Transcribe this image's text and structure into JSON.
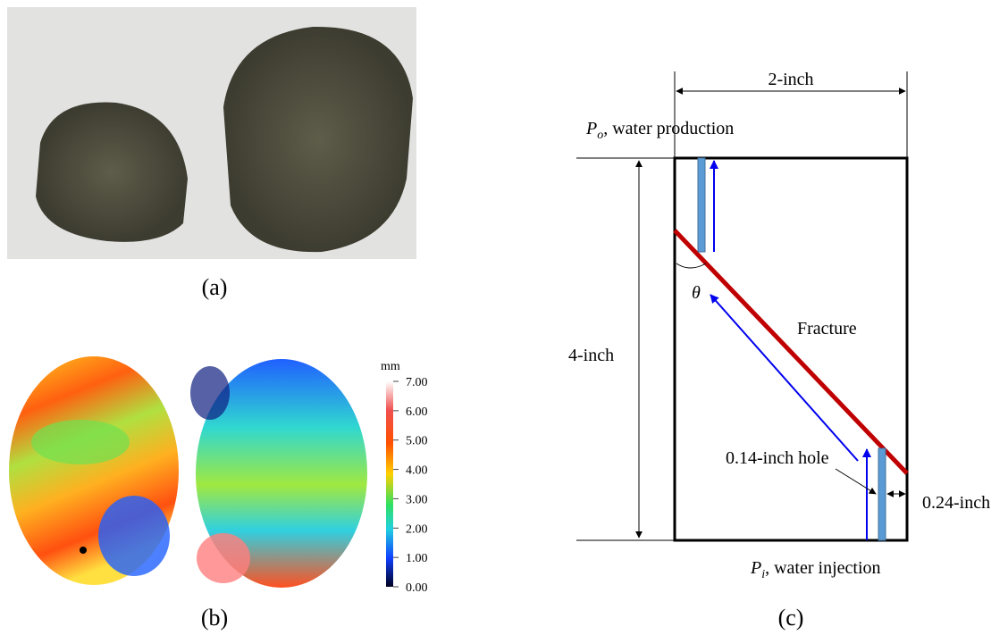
{
  "panels": {
    "a": {
      "label": "(a)"
    },
    "b": {
      "label": "(b)",
      "colorbar": {
        "unit": "mm",
        "ticks": [
          "7.00",
          "6.00",
          "5.00",
          "4.00",
          "3.00",
          "2.00",
          "1.00",
          "0.00"
        ]
      }
    },
    "c": {
      "label": "(c)",
      "width": "2-inch",
      "height": "4-inch",
      "outlet": {
        "symbol": "P",
        "subscript": "o",
        "text": ", water production"
      },
      "inlet": {
        "symbol": "P",
        "subscript": "i",
        "text": ", water injection"
      },
      "angle": "θ",
      "fracture": "Fracture",
      "hole": "0.14-inch hole",
      "offset": "0.24-inch"
    }
  }
}
